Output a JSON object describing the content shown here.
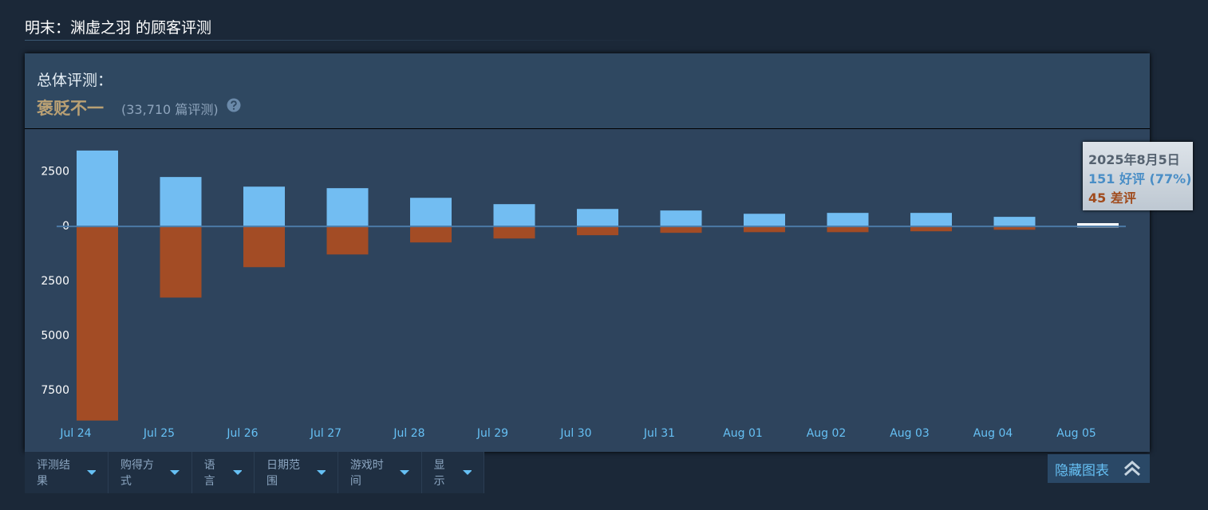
{
  "header": {
    "title": "明末：渊虚之羽 的顾客评测"
  },
  "summary": {
    "label": "总体评测：",
    "rating": "褒贬不一",
    "count": "(33,710 篇评测)"
  },
  "chart_data": {
    "type": "bar",
    "categories": [
      "Jul 24",
      "Jul 25",
      "Jul 26",
      "Jul 27",
      "Jul 28",
      "Jul 29",
      "Jul 30",
      "Jul 31",
      "Aug 01",
      "Aug 02",
      "Aug 03",
      "Aug 04",
      "Aug 05"
    ],
    "series": [
      {
        "color": "#72bdf2",
        "values": [
          3470,
          2260,
          1820,
          1750,
          1310,
          1020,
          800,
          730,
          580,
          620,
          620,
          440,
          151
        ]
      },
      {
        "color": "#a34c25",
        "values": [
          -8870,
          -3250,
          -1860,
          -1280,
          -730,
          -550,
          -400,
          -290,
          -260,
          -260,
          -220,
          -150,
          -45
        ]
      }
    ],
    "highlight": 12,
    "highlight_color": "#ffffff",
    "ylim": [
      -10300,
      4450
    ],
    "yticks": [
      {
        "value": -7500,
        "label": "7500"
      },
      {
        "value": -5000,
        "label": "5000"
      },
      {
        "value": -2500,
        "label": "2500"
      },
      0,
      2500
    ]
  },
  "tooltip": {
    "date": "2025年8月5日",
    "positive": "151 好评 (77%)",
    "negative": "45 差评"
  },
  "filters": [
    "评测结果",
    "购得方式",
    "语言",
    "日期范围",
    "游戏时间",
    "显示"
  ],
  "toggle": "隐藏图表"
}
